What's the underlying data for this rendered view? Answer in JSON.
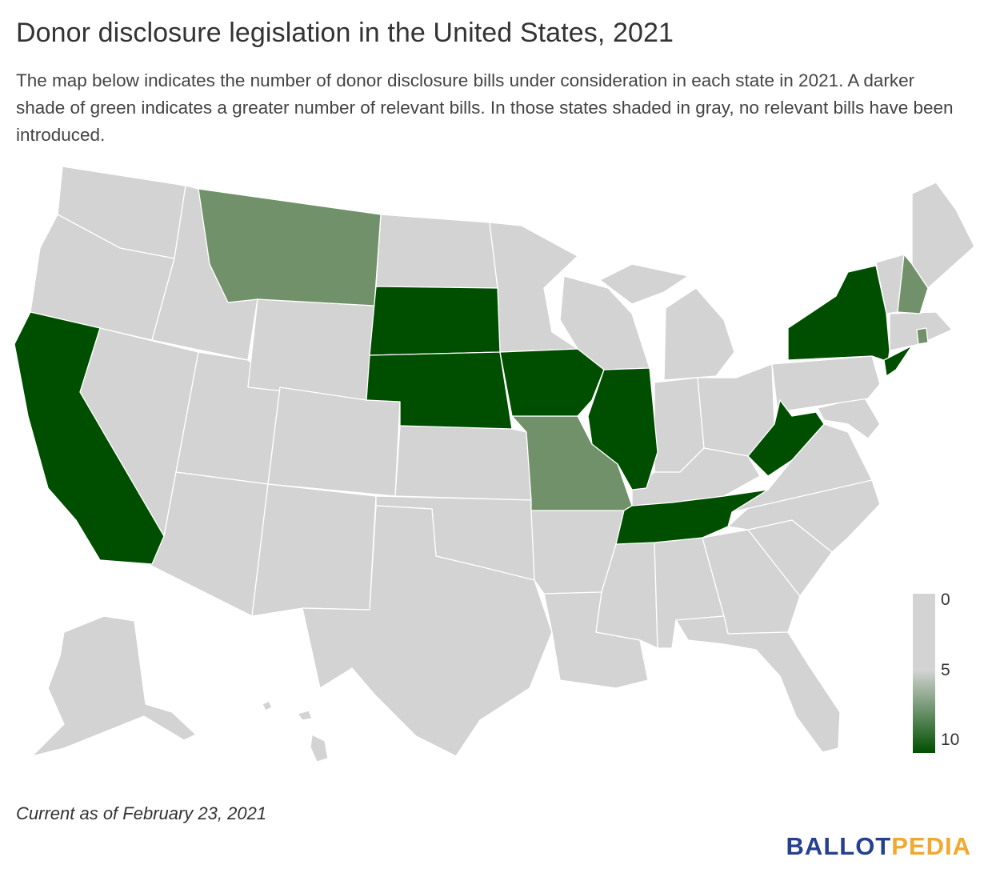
{
  "header": {
    "title": "Donor disclosure legislation in the United States, 2021",
    "subtitle": "The map below indicates the number of donor disclosure bills under consideration in each state in 2021. A darker shade of green indicates a greater number of relevant bills. In those states shaded in gray, no relevant bills have been introduced."
  },
  "map": {
    "colors": {
      "none": "#d3d3d3",
      "medium": "#71916a",
      "high": "#004f00",
      "border": "#ffffff"
    },
    "states_high": [
      "California",
      "South Dakota",
      "Nebraska",
      "Iowa",
      "Illinois",
      "Tennessee",
      "West Virginia",
      "New York",
      "New Jersey"
    ],
    "states_medium": [
      "Montana",
      "Missouri",
      "New Hampshire",
      "Rhode Island"
    ]
  },
  "legend": {
    "labels": [
      "0",
      "5",
      "10"
    ],
    "gradient": [
      "#d3d3d3",
      "#d3d3d3",
      "#004f00"
    ]
  },
  "footer": {
    "note": "Current as of February 23, 2021",
    "logo_part1": "BALLOT",
    "logo_part2": "PEDIA"
  }
}
